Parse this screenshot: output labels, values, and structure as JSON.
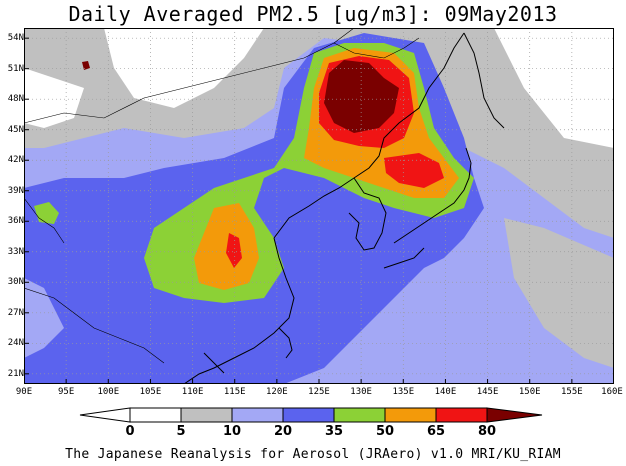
{
  "title": "Daily Averaged PM2.5 [ug/m3]: 09May2013",
  "footer": "The Japanese Reanalysis for Aerosol (JRAero) v1.0 MRI/KU_RIAM",
  "map": {
    "lon_range": [
      90,
      160
    ],
    "lat_range": [
      20,
      55
    ],
    "lat_ticks": [
      "54N",
      "51N",
      "48N",
      "45N",
      "42N",
      "39N",
      "36N",
      "33N",
      "30N",
      "27N",
      "24N",
      "21N"
    ],
    "lat_values": [
      54,
      51,
      48,
      45,
      42,
      39,
      36,
      33,
      30,
      27,
      24,
      21
    ],
    "lon_ticks": [
      "90E",
      "95E",
      "100E",
      "105E",
      "110E",
      "115E",
      "120E",
      "125E",
      "130E",
      "135E",
      "140E",
      "145E",
      "150E",
      "155E",
      "160E"
    ],
    "lon_values": [
      90,
      95,
      100,
      105,
      110,
      115,
      120,
      125,
      130,
      135,
      140,
      145,
      150,
      155,
      160
    ],
    "gridlines": true
  },
  "colorbar": {
    "levels": [
      "0",
      "5",
      "10",
      "20",
      "35",
      "50",
      "65",
      "80"
    ],
    "colors": [
      "#ffffff",
      "#c0c0c0",
      "#a3a8f5",
      "#5b63ee",
      "#8cd136",
      "#f39a0a",
      "#f01414",
      "#7a0000"
    ]
  }
}
